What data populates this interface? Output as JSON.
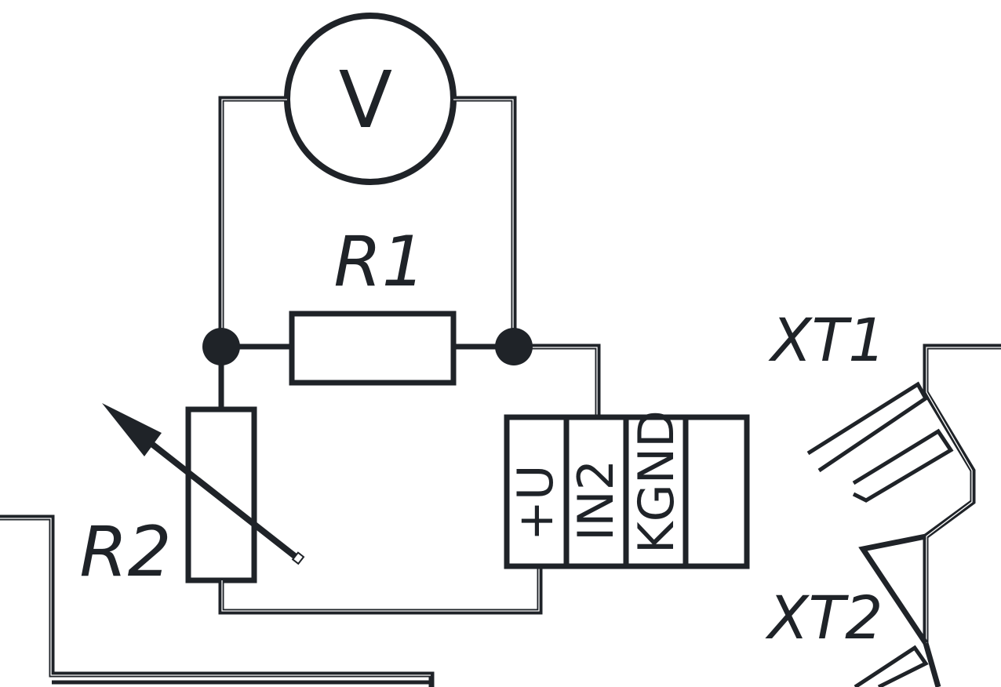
{
  "voltmeter": {
    "symbol": "V"
  },
  "resistor_r1": {
    "label": "R1"
  },
  "resistor_r2": {
    "label": "R2"
  },
  "terminal_block": {
    "pins": [
      "+U",
      "IN2",
      "KGND"
    ]
  },
  "connectors": {
    "xt1": "XT1",
    "xt2": "XT2"
  },
  "colors": {
    "ink": "#1f2328",
    "background": "#ffffff"
  }
}
